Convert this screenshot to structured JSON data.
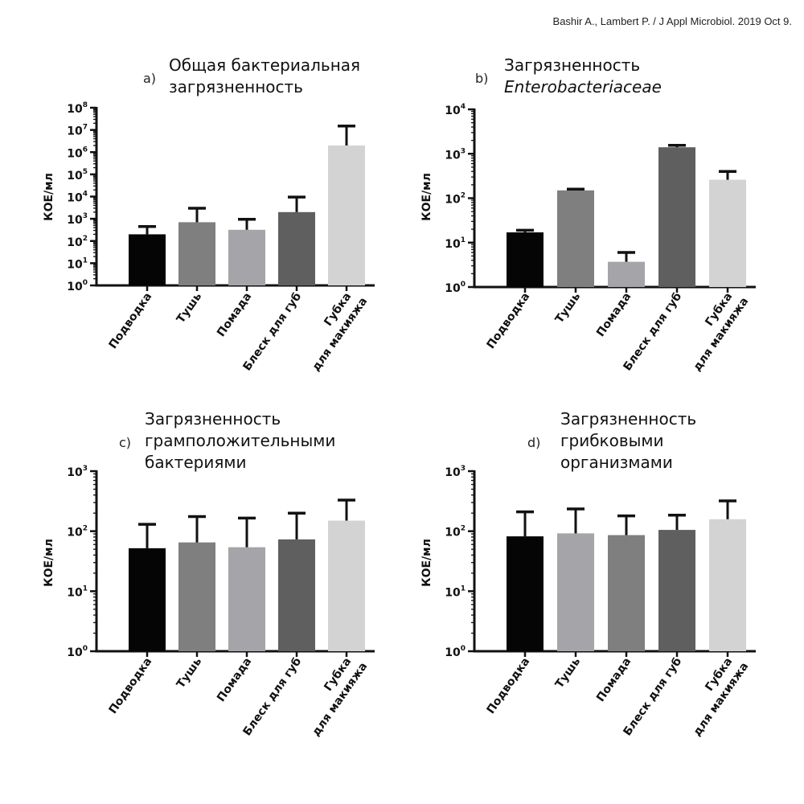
{
  "citation": "Bashir A., Lambert P. / J Appl Microbiol. 2019 Oct 9.",
  "axis_label": "КОЕ/мл",
  "categories": [
    [
      "Подводка"
    ],
    [
      "Тушь"
    ],
    [
      "Помада"
    ],
    [
      "Блеск для губ"
    ],
    [
      "Губка",
      "для макияжа"
    ]
  ],
  "chart_data": [
    {
      "type": "bar",
      "panel": "a)",
      "title_lines": [
        "Общая бактериальная",
        "загрязненность"
      ],
      "title_italic_lines": [],
      "ylabel": "КОЕ/мл",
      "yscale": "log",
      "ylim": [
        1,
        100000000
      ],
      "yticks": [
        "10",
        "10",
        "10",
        "10",
        "10",
        "10",
        "10",
        "10",
        "10"
      ],
      "ytick_exponents": [
        "0",
        "1",
        "2",
        "3",
        "4",
        "5",
        "6",
        "7",
        "8"
      ],
      "categories": [
        "Подводка",
        "Тушь",
        "Помада",
        "Блеск для губ",
        "Губка для макияжа"
      ],
      "values": [
        200,
        700,
        320,
        2000,
        2000000
      ],
      "errors_upper": [
        450,
        3000,
        950,
        9500,
        15000000
      ],
      "colors": [
        "#050505",
        "#7f7f7f",
        "#a4a4a9",
        "#5f5f5f",
        "#d3d3d3"
      ]
    },
    {
      "type": "bar",
      "panel": "b)",
      "title_lines": [
        "Загрязненность"
      ],
      "title_italic_lines": [
        "Enterobacteriaceae"
      ],
      "ylabel": "КОЕ/мл",
      "yscale": "log",
      "ylim": [
        1,
        10000
      ],
      "yticks": [
        "10",
        "10",
        "10",
        "10",
        "10"
      ],
      "ytick_exponents": [
        "0",
        "1",
        "2",
        "3",
        "4"
      ],
      "categories": [
        "Подводка",
        "Тушь",
        "Помада",
        "Блеск для губ",
        "Губка для макияжа"
      ],
      "values": [
        17,
        150,
        3.7,
        1400,
        260
      ],
      "errors_upper": [
        19,
        160,
        6,
        1550,
        400
      ],
      "colors": [
        "#050505",
        "#7f7f7f",
        "#a4a4a9",
        "#5f5f5f",
        "#d3d3d3"
      ]
    },
    {
      "type": "bar",
      "panel": "c)",
      "title_lines": [
        "Загрязненность",
        "грамположительными",
        "бактериями"
      ],
      "title_italic_lines": [],
      "ylabel": "КОЕ/мл",
      "yscale": "log",
      "ylim": [
        1,
        1000
      ],
      "yticks": [
        "10",
        "10",
        "10",
        "10"
      ],
      "ytick_exponents": [
        "0",
        "1",
        "2",
        "3"
      ],
      "categories": [
        "Подводка",
        "Тушь",
        "Помада",
        "Блеск для губ",
        "Губка для макияжа"
      ],
      "values": [
        52,
        65,
        54,
        73,
        150
      ],
      "errors_upper": [
        130,
        175,
        165,
        200,
        330
      ],
      "colors": [
        "#050505",
        "#7f7f7f",
        "#a4a4a9",
        "#5f5f5f",
        "#d3d3d3"
      ]
    },
    {
      "type": "bar",
      "panel": "d)",
      "title_lines": [
        "Загрязненность",
        "грибковыми",
        "организмами"
      ],
      "title_italic_lines": [],
      "ylabel": "КОЕ/мл",
      "yscale": "log",
      "ylim": [
        1,
        1000
      ],
      "yticks": [
        "10",
        "10",
        "10",
        "10"
      ],
      "ytick_exponents": [
        "0",
        "1",
        "2",
        "3"
      ],
      "categories": [
        "Подводка",
        "Тушь",
        "Помада",
        "Блеск для губ",
        "Губка для макияжа"
      ],
      "values": [
        82,
        92,
        86,
        105,
        158
      ],
      "errors_upper": [
        210,
        235,
        180,
        185,
        320
      ],
      "colors": [
        "#050505",
        "#a4a4a9",
        "#7f7f7f",
        "#5f5f5f",
        "#d3d3d3"
      ]
    }
  ]
}
